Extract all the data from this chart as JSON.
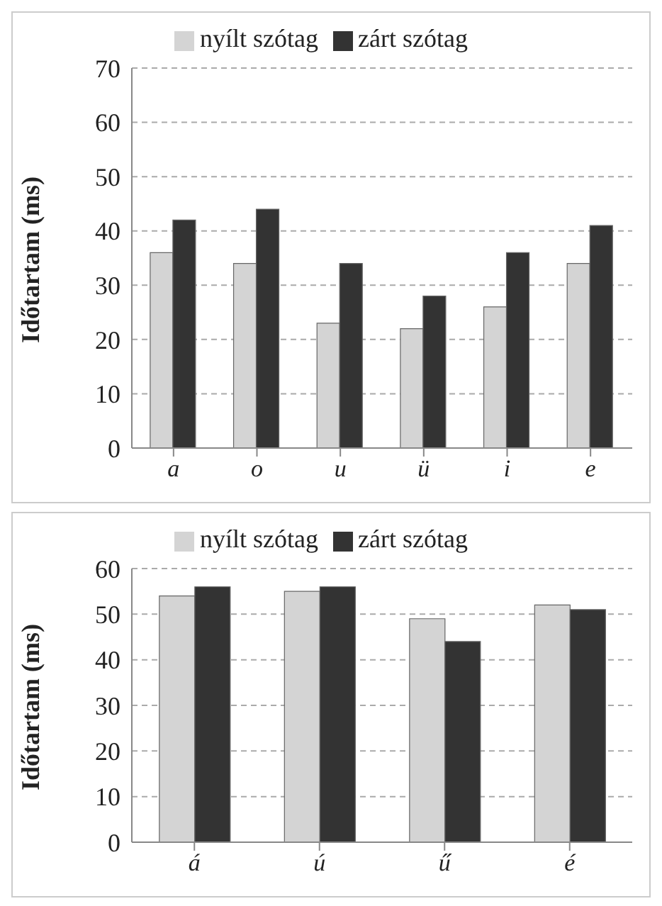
{
  "chart_data": [
    {
      "type": "bar",
      "categories": [
        "a",
        "o",
        "u",
        "ü",
        "i",
        "e"
      ],
      "ylabel": "Időtartam (ms)",
      "ylim": [
        0,
        70
      ],
      "yticks": [
        0,
        10,
        20,
        30,
        40,
        50,
        60,
        70
      ],
      "grid": "y",
      "legend": "top",
      "series": [
        {
          "name": "nyílt szótag",
          "color": "#d4d4d4",
          "values": [
            36,
            34,
            23,
            22,
            26,
            34
          ]
        },
        {
          "name": "zárt szótag",
          "color": "#333333",
          "values": [
            42,
            44,
            34,
            28,
            36,
            41
          ]
        }
      ]
    },
    {
      "type": "bar",
      "categories": [
        "á",
        "ú",
        "ű",
        "é"
      ],
      "ylabel": "Időtartam (ms)",
      "ylim": [
        0,
        60
      ],
      "yticks": [
        0,
        10,
        20,
        30,
        40,
        50,
        60
      ],
      "grid": "y",
      "legend": "top",
      "series": [
        {
          "name": "nyílt szótag",
          "color": "#d4d4d4",
          "values": [
            54,
            55,
            49,
            52
          ]
        },
        {
          "name": "zárt szótag",
          "color": "#333333",
          "values": [
            56,
            56,
            44,
            51
          ]
        }
      ]
    }
  ]
}
